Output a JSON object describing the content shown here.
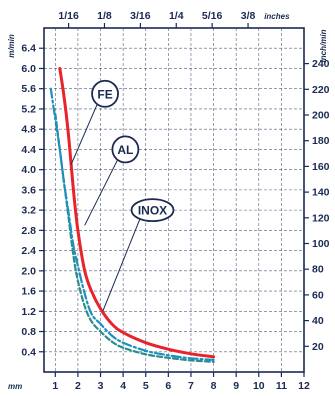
{
  "chart_data": {
    "type": "line",
    "x_axis_bottom": {
      "unit": "mm",
      "ticks": [
        "1",
        "2",
        "3",
        "4",
        "5",
        "6",
        "7",
        "8",
        "9",
        "10",
        "11",
        "12"
      ],
      "range": [
        0.5,
        12
      ]
    },
    "x_axis_top": {
      "unit": "inches",
      "ticks": [
        {
          "label": "1/16",
          "mm": 1.5875
        },
        {
          "label": "1/8",
          "mm": 3.175
        },
        {
          "label": "3/16",
          "mm": 4.7625
        },
        {
          "label": "1/4",
          "mm": 6.35
        },
        {
          "label": "5/16",
          "mm": 7.9375
        },
        {
          "label": "3/8",
          "mm": 9.525
        }
      ]
    },
    "y_axis_left": {
      "unit": "m/min",
      "ticks": [
        "0.4",
        "0.8",
        "1.2",
        "1.6",
        "2.0",
        "2.4",
        "2.8",
        "3.2",
        "3.6",
        "4.0",
        "4.4",
        "4.8",
        "5.2",
        "5.6",
        "6.0",
        "6.4"
      ],
      "range": [
        0,
        6.8
      ]
    },
    "y_axis_right": {
      "unit": "inch/min",
      "ticks": [
        "20",
        "40",
        "60",
        "80",
        "100",
        "120",
        "140",
        "160",
        "180",
        "200",
        "220",
        "240"
      ],
      "inch_per_min_per_m_per_min": 39.37
    },
    "grid": true,
    "series": [
      {
        "name": "FE",
        "color": "#e8232c",
        "style": "solid",
        "x": [
          1.2,
          1.4,
          1.6,
          1.8,
          2.0,
          2.3,
          2.6,
          3.0,
          3.5,
          4.0,
          5.0,
          6.0,
          7.0,
          8.0
        ],
        "y": [
          6.0,
          5.4,
          4.6,
          3.6,
          2.8,
          2.0,
          1.6,
          1.25,
          0.95,
          0.78,
          0.58,
          0.45,
          0.36,
          0.3
        ]
      },
      {
        "name": "AL",
        "color": "#1f8fbf",
        "style": "dashdot",
        "x": [
          0.8,
          1.0,
          1.2,
          1.4,
          1.6,
          1.8,
          2.0,
          2.3,
          2.6,
          3.0,
          3.5,
          4.0,
          5.0,
          6.0,
          7.0,
          8.0
        ],
        "y": [
          5.6,
          5.0,
          4.4,
          3.7,
          3.1,
          2.5,
          2.1,
          1.55,
          1.15,
          0.95,
          0.72,
          0.58,
          0.42,
          0.33,
          0.27,
          0.24
        ]
      },
      {
        "name": "INOX",
        "color": "#2a8f8a",
        "style": "dashed",
        "x": [
          1.0,
          1.2,
          1.4,
          1.6,
          1.8,
          2.0,
          2.3,
          2.6,
          3.0,
          3.5,
          4.0,
          5.0,
          6.0,
          7.0,
          8.0
        ],
        "y": [
          5.1,
          4.4,
          3.7,
          3.0,
          2.3,
          1.8,
          1.3,
          1.0,
          0.8,
          0.6,
          0.48,
          0.35,
          0.28,
          0.23,
          0.2
        ]
      }
    ]
  }
}
